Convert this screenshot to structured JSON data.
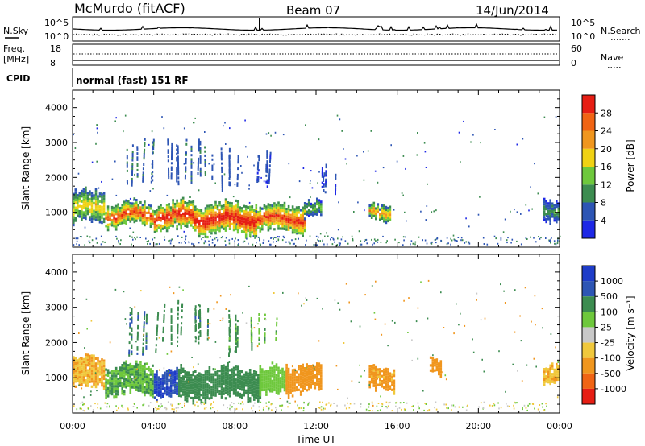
{
  "header": {
    "station": "McMurdo (fitACF)",
    "beam": "Beam 07",
    "date": "14/Jun/2014",
    "nsky_label": "N.Sky",
    "nsearch_label": "N.Search",
    "freq_label_line1": "Freq.",
    "freq_label_line2": "[MHz]",
    "nave_label": "Nave",
    "cpid_label": "CPID",
    "cpid_value": "normal (fast) 151 RF",
    "noise_ticks": [
      "10^5",
      "10^0"
    ],
    "freq_ticks": [
      "18",
      "8"
    ],
    "nave_ticks": [
      "60",
      "0"
    ]
  },
  "axes": {
    "xlabel": "Time UT",
    "x_ticks": [
      "00:00",
      "04:00",
      "08:00",
      "12:00",
      "16:00",
      "20:00",
      "00:00"
    ],
    "ylabel": "Slant Range [km]",
    "y_ticks": [
      "1000",
      "2000",
      "3000",
      "4000"
    ]
  },
  "colors": {
    "power": [
      "#1e28e6",
      "#2d55b4",
      "#3c8c50",
      "#6ec83c",
      "#f0d214",
      "#f0961e",
      "#f06414",
      "#e61e14"
    ],
    "velocity": [
      "#e61e14",
      "#f06414",
      "#f0961e",
      "#f0c83c",
      "#c8c8c8",
      "#6ec83c",
      "#3c8c50",
      "#2d55b4",
      "#1e3cc8"
    ],
    "ground_scatter": "#9a9a9a"
  },
  "chart_data": [
    {
      "type": "heatmap",
      "panel": "power",
      "ylabel": "Slant Range [km]",
      "xlabel": "",
      "colorbar_label": "Power [dB]",
      "colorbar_ticks": [
        "4",
        "8",
        "12",
        "16",
        "20",
        "24",
        "28"
      ],
      "colorbar_range": [
        0,
        32
      ],
      "x_range_hours": [
        0,
        24
      ],
      "y_range_km": [
        0,
        4500
      ],
      "scatter_regions": [
        {
          "t_start": 0.0,
          "t_end": 1.6,
          "r_center": 1150,
          "r_half": 400,
          "value": 18
        },
        {
          "t_start": 1.6,
          "t_end": 4.0,
          "r_center": 950,
          "r_half": 300,
          "value": 26
        },
        {
          "t_start": 4.0,
          "t_end": 6.0,
          "r_center": 900,
          "r_half": 350,
          "value": 29
        },
        {
          "t_start": 6.0,
          "t_end": 9.0,
          "r_center": 850,
          "r_half": 400,
          "value": 30
        },
        {
          "t_start": 9.0,
          "t_end": 11.4,
          "r_center": 850,
          "r_half": 350,
          "value": 27
        },
        {
          "t_start": 11.4,
          "t_end": 12.2,
          "r_center": 1100,
          "r_half": 200,
          "value": 14
        },
        {
          "t_start": 14.6,
          "t_end": 15.6,
          "r_center": 1000,
          "r_half": 200,
          "value": 22
        },
        {
          "t_start": 23.2,
          "t_end": 24.0,
          "r_center": 1150,
          "r_half": 300,
          "value": 10
        }
      ],
      "streaks": [
        {
          "t": 3.2,
          "r0": 1800,
          "r1": 3000,
          "value": 8
        },
        {
          "t": 4.6,
          "r0": 1900,
          "r1": 3100,
          "value": 6
        },
        {
          "t": 6.1,
          "r0": 2000,
          "r1": 3100,
          "value": 7
        },
        {
          "t": 7.4,
          "r0": 1800,
          "r1": 2800,
          "value": 6
        },
        {
          "t": 9.3,
          "r0": 1900,
          "r1": 2700,
          "value": 5
        },
        {
          "t": 12.8,
          "r0": 1700,
          "r1": 2300,
          "value": 4
        }
      ]
    },
    {
      "type": "heatmap",
      "panel": "velocity",
      "ylabel": "Slant Range [km]",
      "xlabel": "Time UT",
      "colorbar_label": "Velocity [m s⁻¹]",
      "colorbar_ticks": [
        "-1000",
        "-500",
        "-100",
        "-25",
        "25",
        "100",
        "500",
        "1000"
      ],
      "x_range_hours": [
        0,
        24
      ],
      "y_range_km": [
        0,
        4500
      ],
      "scatter_regions": [
        {
          "t_start": 0.0,
          "t_end": 1.6,
          "r_center": 1150,
          "r_half": 400,
          "value": -100
        },
        {
          "t_start": 1.6,
          "t_end": 4.0,
          "r_center": 950,
          "r_half": 400,
          "value": 100
        },
        {
          "t_start": 4.0,
          "t_end": 5.2,
          "r_center": 850,
          "r_half": 350,
          "value": 1000
        },
        {
          "t_start": 5.2,
          "t_end": 9.2,
          "r_center": 850,
          "r_half": 400,
          "value": 250
        },
        {
          "t_start": 9.2,
          "t_end": 10.5,
          "r_center": 900,
          "r_half": 350,
          "value": 50
        },
        {
          "t_start": 10.5,
          "t_end": 12.2,
          "r_center": 1000,
          "r_half": 350,
          "value": -250
        },
        {
          "t_start": 14.6,
          "t_end": 15.8,
          "r_center": 1000,
          "r_half": 300,
          "value": -150
        },
        {
          "t_start": 17.6,
          "t_end": 18.2,
          "r_center": 1400,
          "r_half": 200,
          "value": -200
        },
        {
          "t_start": 23.2,
          "t_end": 24.0,
          "r_center": 1150,
          "r_half": 250,
          "value": -80
        }
      ],
      "streaks": [
        {
          "t": 3.2,
          "r0": 1800,
          "r1": 3000,
          "value": 500
        },
        {
          "t": 4.6,
          "r0": 1900,
          "r1": 3100,
          "value": 300
        },
        {
          "t": 6.1,
          "r0": 2000,
          "r1": 3100,
          "value": 400
        },
        {
          "t": 7.4,
          "r0": 1800,
          "r1": 2800,
          "value": 200
        },
        {
          "t": 9.3,
          "r0": 1900,
          "r1": 2700,
          "value": 100
        }
      ]
    }
  ]
}
